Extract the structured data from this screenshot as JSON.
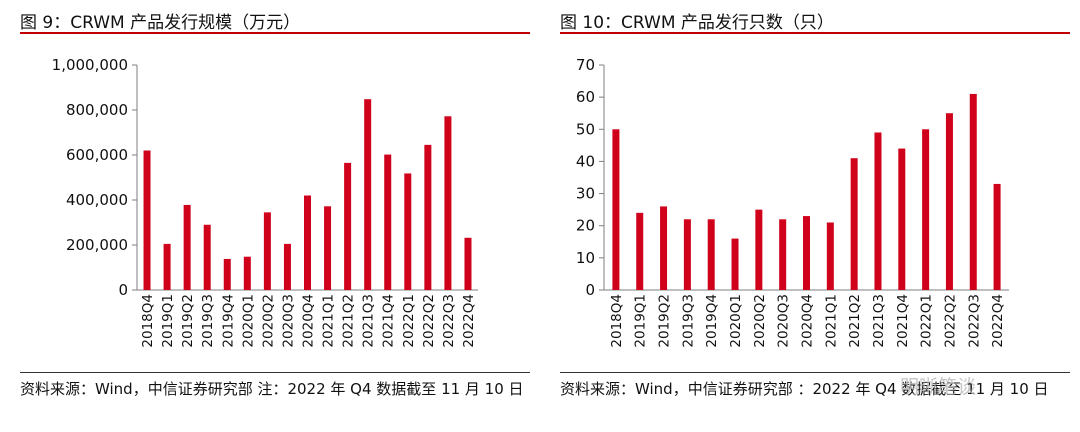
{
  "panels": [
    {
      "title": "图 9：CRWM 产品发行规模（万元）",
      "source": "资料来源：Wind，中信证券研究部 注：2022 年 Q4 数据截至 11 月 10 日"
    },
    {
      "title": "图 10：CRWM 产品发行只数（只）",
      "source": "资料来源：Wind，中信证券研究部 ：2022 年 Q4 数据截至 11 月 10 日"
    }
  ],
  "watermark": "明晰笔谈",
  "colors": {
    "bar": "#d0021b",
    "rule": "#c00000"
  },
  "chart_data": [
    {
      "type": "bar",
      "title": "图 9：CRWM 产品发行规模（万元）",
      "categories": [
        "2018Q4",
        "2019Q1",
        "2019Q2",
        "2019Q3",
        "2019Q4",
        "2020Q1",
        "2020Q2",
        "2020Q3",
        "2020Q4",
        "2021Q1",
        "2021Q2",
        "2021Q3",
        "2021Q4",
        "2022Q1",
        "2022Q2",
        "2022Q3",
        "2022Q4"
      ],
      "values": [
        620000,
        205000,
        378000,
        290000,
        138000,
        148000,
        345000,
        205000,
        420000,
        372000,
        565000,
        848000,
        602000,
        518000,
        645000,
        772000,
        232000
      ],
      "ylim": [
        0,
        1000000
      ],
      "yticks": [
        0,
        200000,
        400000,
        600000,
        800000,
        1000000
      ],
      "ytick_labels": [
        "0",
        "200,000",
        "400,000",
        "600,000",
        "800,000",
        "1,000,000"
      ],
      "grid": false
    },
    {
      "type": "bar",
      "title": "图 10：CRWM 产品发行只数（只）",
      "categories": [
        "2018Q4",
        "2019Q1",
        "2019Q2",
        "2019Q3",
        "2019Q4",
        "2020Q1",
        "2020Q2",
        "2020Q3",
        "2020Q4",
        "2021Q1",
        "2021Q2",
        "2021Q3",
        "2021Q4",
        "2022Q1",
        "2022Q2",
        "2022Q3",
        "2022Q4"
      ],
      "values": [
        50,
        24,
        26,
        22,
        22,
        16,
        25,
        22,
        23,
        21,
        41,
        49,
        44,
        50,
        55,
        61,
        33
      ],
      "ylim": [
        0,
        70
      ],
      "yticks": [
        0,
        10,
        20,
        30,
        40,
        50,
        60,
        70
      ],
      "ytick_labels": [
        "0",
        "10",
        "20",
        "30",
        "40",
        "50",
        "60",
        "70"
      ],
      "grid": false
    }
  ]
}
